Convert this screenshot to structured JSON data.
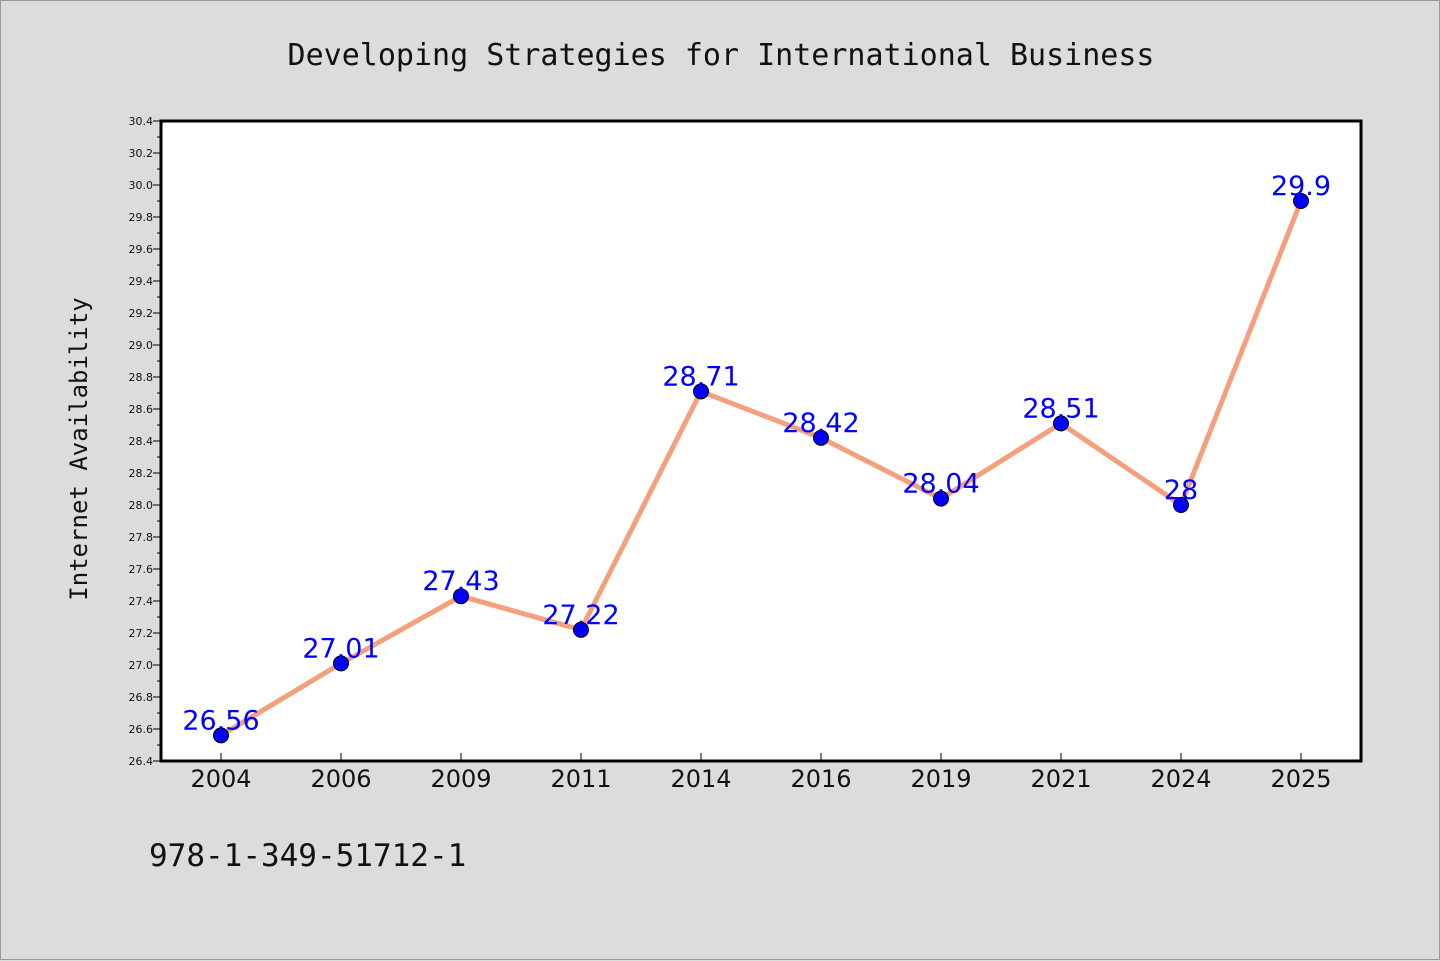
{
  "chart_data": {
    "type": "line",
    "title": "Developing Strategies for International Business",
    "xlabel": "",
    "ylabel": "Internet Availability",
    "categories": [
      "2004",
      "2006",
      "2009",
      "2011",
      "2014",
      "2016",
      "2019",
      "2021",
      "2024",
      "2025"
    ],
    "series": [
      {
        "values": [
          26.56,
          27.01,
          27.43,
          27.22,
          28.71,
          28.42,
          28.04,
          28.51,
          28,
          29.9
        ],
        "data_labels": [
          "26.56",
          "27.01",
          "27.43",
          "27.22",
          "28.71",
          "28.42",
          "28.04",
          "28.51",
          "28",
          "29.9"
        ],
        "line_color": "#f4a07c",
        "marker_color": "#0000ff",
        "label_color": "#0000ff"
      }
    ],
    "ylim": [
      26.4,
      30.4
    ],
    "yticks": [
      "26.4",
      "26.6",
      "26.8",
      "27.0",
      "27.2",
      "27.4",
      "27.6",
      "27.8",
      "28.0",
      "28.2",
      "28.4",
      "28.6",
      "28.8",
      "29.0",
      "29.2",
      "29.4",
      "29.6",
      "29.8",
      "30.0",
      "30.2",
      "30.4"
    ],
    "grid": false,
    "legend": "none"
  },
  "footer": {
    "isbn": "978-1-349-51712-1"
  },
  "colors": {
    "background": "#dcdcdc",
    "plot_background": "#ffffff",
    "axis": "#000000"
  }
}
